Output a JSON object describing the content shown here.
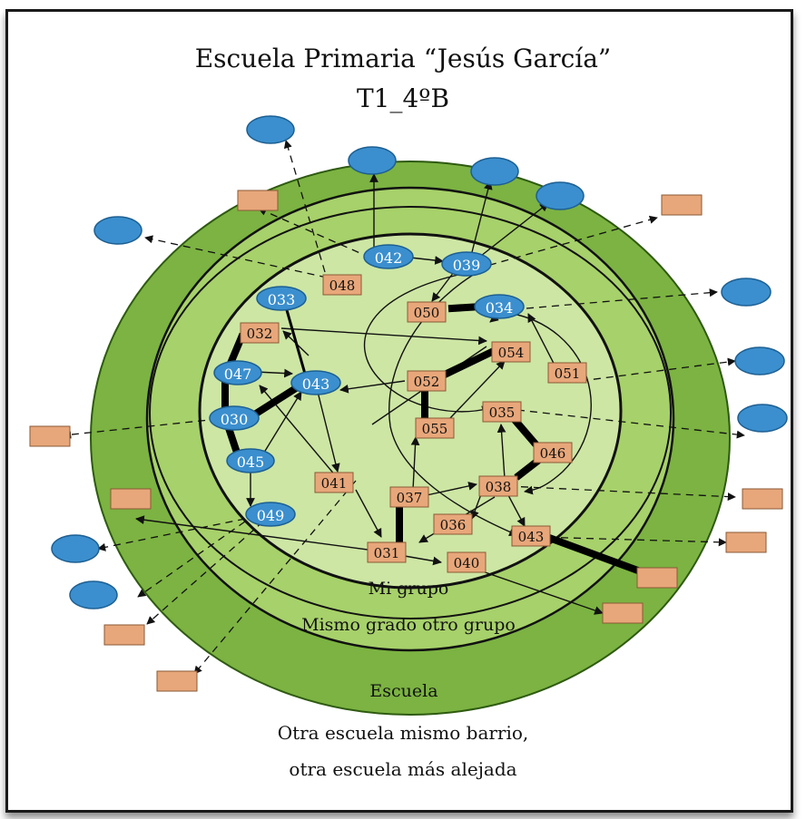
{
  "title": "Escuela Primaria “Jesús García”",
  "subtitle": "T1_4ºB",
  "zones": {
    "inner": "Mi grupo",
    "middle": "Mismo grado otro grupo",
    "school": "Escuela",
    "outer_line1": "Otra escuela mismo barrio,",
    "outer_line2": "otra escuela más alejada"
  },
  "colors": {
    "outer_ring": "#7cb342",
    "middle_ring": "#a7d16a",
    "inner_circle": "#cde6a4",
    "girl_node": "#3b8fce",
    "boy_node": "#e8a77a",
    "edge": "#111111"
  },
  "legend_shapes": {
    "ellipse": "girl",
    "rectangle": "boy"
  },
  "nodes": [
    {
      "id": "042",
      "shape": "ellipse"
    },
    {
      "id": "039",
      "shape": "ellipse"
    },
    {
      "id": "033",
      "shape": "ellipse"
    },
    {
      "id": "034",
      "shape": "ellipse"
    },
    {
      "id": "047",
      "shape": "ellipse"
    },
    {
      "id": "043",
      "shape": "ellipse"
    },
    {
      "id": "030",
      "shape": "ellipse"
    },
    {
      "id": "045",
      "shape": "ellipse"
    },
    {
      "id": "049",
      "shape": "ellipse"
    },
    {
      "id": "048",
      "shape": "rect"
    },
    {
      "id": "050",
      "shape": "rect"
    },
    {
      "id": "032",
      "shape": "rect"
    },
    {
      "id": "054",
      "shape": "rect"
    },
    {
      "id": "052",
      "shape": "rect"
    },
    {
      "id": "051",
      "shape": "rect"
    },
    {
      "id": "055",
      "shape": "rect"
    },
    {
      "id": "035",
      "shape": "rect"
    },
    {
      "id": "046",
      "shape": "rect"
    },
    {
      "id": "041",
      "shape": "rect"
    },
    {
      "id": "037",
      "shape": "rect"
    },
    {
      "id": "038",
      "shape": "rect"
    },
    {
      "id": "036",
      "shape": "rect"
    },
    {
      "id": "031",
      "shape": "rect"
    },
    {
      "id": "040",
      "shape": "rect"
    },
    {
      "id": "043b",
      "label": "043",
      "shape": "rect"
    }
  ]
}
